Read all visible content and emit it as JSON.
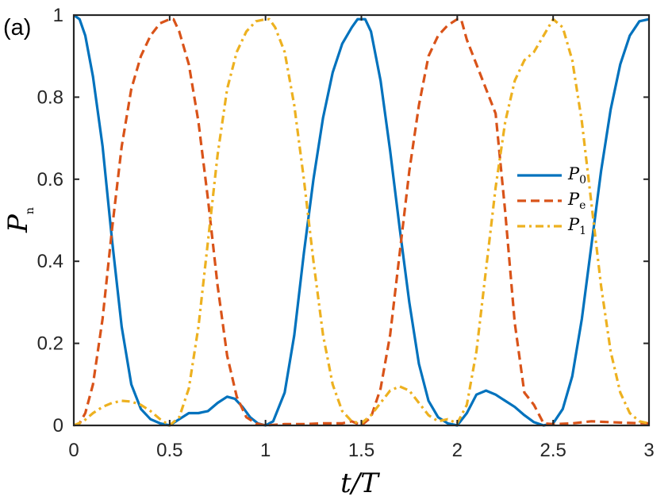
{
  "panel_label": "(a)",
  "colors": {
    "P0": "#0072BD",
    "Pe": "#D95319",
    "P1": "#EDB120",
    "axis": "#262626"
  },
  "chart_data": {
    "type": "line",
    "xlabel": "t/T",
    "ylabel": "P_n",
    "xlim": [
      0,
      3
    ],
    "ylim": [
      0,
      1
    ],
    "xticks": [
      0,
      0.5,
      1,
      1.5,
      2,
      2.5,
      3
    ],
    "xtick_labels": [
      "0",
      "0.5",
      "1",
      "1.5",
      "2",
      "2.5",
      "3"
    ],
    "yticks": [
      0,
      0.2,
      0.4,
      0.6,
      0.8,
      1
    ],
    "ytick_labels": [
      "0",
      "0.2",
      "0.4",
      "0.6",
      "0.8",
      "1"
    ],
    "grid": false,
    "legend_position": "right",
    "series": [
      {
        "name": "P_0",
        "style": "solid",
        "color": "#0072BD",
        "points": [
          [
            0,
            1
          ],
          [
            0.03,
            0.99
          ],
          [
            0.06,
            0.95
          ],
          [
            0.1,
            0.85
          ],
          [
            0.15,
            0.68
          ],
          [
            0.2,
            0.45
          ],
          [
            0.25,
            0.24
          ],
          [
            0.3,
            0.1
          ],
          [
            0.35,
            0.04
          ],
          [
            0.4,
            0.015
          ],
          [
            0.45,
            0.005
          ],
          [
            0.5,
            0.0
          ],
          [
            0.55,
            0.015
          ],
          [
            0.6,
            0.03
          ],
          [
            0.65,
            0.03
          ],
          [
            0.7,
            0.035
          ],
          [
            0.75,
            0.055
          ],
          [
            0.8,
            0.07
          ],
          [
            0.84,
            0.065
          ],
          [
            0.88,
            0.045
          ],
          [
            0.92,
            0.02
          ],
          [
            0.96,
            0.005
          ],
          [
            1.0,
            0.0
          ],
          [
            1.04,
            0.01
          ],
          [
            1.1,
            0.08
          ],
          [
            1.15,
            0.22
          ],
          [
            1.2,
            0.42
          ],
          [
            1.25,
            0.6
          ],
          [
            1.3,
            0.75
          ],
          [
            1.35,
            0.86
          ],
          [
            1.4,
            0.93
          ],
          [
            1.45,
            0.97
          ],
          [
            1.48,
            0.99
          ],
          [
            1.52,
            0.99
          ],
          [
            1.55,
            0.96
          ],
          [
            1.6,
            0.84
          ],
          [
            1.65,
            0.67
          ],
          [
            1.7,
            0.48
          ],
          [
            1.75,
            0.3
          ],
          [
            1.8,
            0.15
          ],
          [
            1.85,
            0.06
          ],
          [
            1.9,
            0.02
          ],
          [
            1.95,
            0.005
          ],
          [
            2.0,
            0.0
          ],
          [
            2.05,
            0.03
          ],
          [
            2.1,
            0.075
          ],
          [
            2.15,
            0.085
          ],
          [
            2.2,
            0.075
          ],
          [
            2.25,
            0.06
          ],
          [
            2.3,
            0.045
          ],
          [
            2.35,
            0.025
          ],
          [
            2.4,
            0.008
          ],
          [
            2.45,
            0.0
          ],
          [
            2.5,
            0.005
          ],
          [
            2.55,
            0.04
          ],
          [
            2.6,
            0.12
          ],
          [
            2.65,
            0.26
          ],
          [
            2.7,
            0.44
          ],
          [
            2.75,
            0.62
          ],
          [
            2.8,
            0.77
          ],
          [
            2.85,
            0.88
          ],
          [
            2.9,
            0.95
          ],
          [
            2.95,
            0.985
          ],
          [
            3.0,
            0.99
          ]
        ]
      },
      {
        "name": "P_e",
        "style": "dashed",
        "color": "#D95319",
        "points": [
          [
            0,
            0.0
          ],
          [
            0.03,
            0.005
          ],
          [
            0.06,
            0.03
          ],
          [
            0.1,
            0.1
          ],
          [
            0.15,
            0.26
          ],
          [
            0.2,
            0.48
          ],
          [
            0.25,
            0.68
          ],
          [
            0.3,
            0.82
          ],
          [
            0.35,
            0.9
          ],
          [
            0.4,
            0.95
          ],
          [
            0.45,
            0.98
          ],
          [
            0.5,
            0.99
          ],
          [
            0.52,
            0.99
          ],
          [
            0.55,
            0.96
          ],
          [
            0.6,
            0.88
          ],
          [
            0.65,
            0.74
          ],
          [
            0.7,
            0.55
          ],
          [
            0.75,
            0.34
          ],
          [
            0.8,
            0.17
          ],
          [
            0.85,
            0.07
          ],
          [
            0.9,
            0.02
          ],
          [
            0.95,
            0.005
          ],
          [
            1.0,
            0.0
          ],
          [
            1.1,
            0.003
          ],
          [
            1.2,
            0.003
          ],
          [
            1.3,
            0.005
          ],
          [
            1.4,
            0.005
          ],
          [
            1.45,
            0.01
          ],
          [
            1.5,
            0.0
          ],
          [
            1.55,
            0.02
          ],
          [
            1.6,
            0.09
          ],
          [
            1.65,
            0.22
          ],
          [
            1.7,
            0.42
          ],
          [
            1.75,
            0.62
          ],
          [
            1.8,
            0.78
          ],
          [
            1.85,
            0.9
          ],
          [
            1.9,
            0.95
          ],
          [
            1.95,
            0.975
          ],
          [
            2.0,
            0.99
          ],
          [
            2.02,
            0.99
          ],
          [
            2.05,
            0.94
          ],
          [
            2.1,
            0.88
          ],
          [
            2.15,
            0.82
          ],
          [
            2.2,
            0.76
          ],
          [
            2.25,
            0.52
          ],
          [
            2.3,
            0.25
          ],
          [
            2.35,
            0.08
          ],
          [
            2.4,
            0.05
          ],
          [
            2.45,
            0.005
          ],
          [
            2.5,
            0.003
          ],
          [
            2.6,
            0.005
          ],
          [
            2.7,
            0.01
          ],
          [
            2.8,
            0.008
          ],
          [
            2.9,
            0.006
          ],
          [
            3.0,
            0.005
          ]
        ]
      },
      {
        "name": "P_1",
        "style": "dashdot",
        "color": "#EDB120",
        "points": [
          [
            0,
            0.0
          ],
          [
            0.05,
            0.01
          ],
          [
            0.1,
            0.03
          ],
          [
            0.15,
            0.045
          ],
          [
            0.2,
            0.055
          ],
          [
            0.25,
            0.06
          ],
          [
            0.3,
            0.058
          ],
          [
            0.35,
            0.05
          ],
          [
            0.4,
            0.035
          ],
          [
            0.45,
            0.015
          ],
          [
            0.5,
            0.0
          ],
          [
            0.55,
            0.02
          ],
          [
            0.6,
            0.09
          ],
          [
            0.65,
            0.24
          ],
          [
            0.7,
            0.45
          ],
          [
            0.75,
            0.66
          ],
          [
            0.8,
            0.82
          ],
          [
            0.85,
            0.91
          ],
          [
            0.9,
            0.96
          ],
          [
            0.95,
            0.985
          ],
          [
            1.0,
            0.99
          ],
          [
            1.02,
            0.99
          ],
          [
            1.05,
            0.97
          ],
          [
            1.1,
            0.91
          ],
          [
            1.15,
            0.78
          ],
          [
            1.2,
            0.6
          ],
          [
            1.25,
            0.4
          ],
          [
            1.3,
            0.22
          ],
          [
            1.35,
            0.1
          ],
          [
            1.4,
            0.035
          ],
          [
            1.45,
            0.01
          ],
          [
            1.5,
            0.005
          ],
          [
            1.55,
            0.025
          ],
          [
            1.6,
            0.055
          ],
          [
            1.65,
            0.085
          ],
          [
            1.7,
            0.095
          ],
          [
            1.75,
            0.085
          ],
          [
            1.8,
            0.055
          ],
          [
            1.85,
            0.025
          ],
          [
            1.9,
            0.01
          ],
          [
            1.95,
            0.015
          ],
          [
            2.0,
            0.005
          ],
          [
            2.05,
            0.05
          ],
          [
            2.1,
            0.18
          ],
          [
            2.15,
            0.38
          ],
          [
            2.2,
            0.58
          ],
          [
            2.25,
            0.74
          ],
          [
            2.3,
            0.84
          ],
          [
            2.35,
            0.89
          ],
          [
            2.4,
            0.91
          ],
          [
            2.45,
            0.95
          ],
          [
            2.5,
            0.99
          ],
          [
            2.55,
            0.97
          ],
          [
            2.6,
            0.89
          ],
          [
            2.65,
            0.74
          ],
          [
            2.7,
            0.54
          ],
          [
            2.75,
            0.34
          ],
          [
            2.8,
            0.18
          ],
          [
            2.85,
            0.08
          ],
          [
            2.9,
            0.03
          ],
          [
            2.95,
            0.01
          ],
          [
            3.0,
            0.005
          ]
        ]
      }
    ]
  }
}
